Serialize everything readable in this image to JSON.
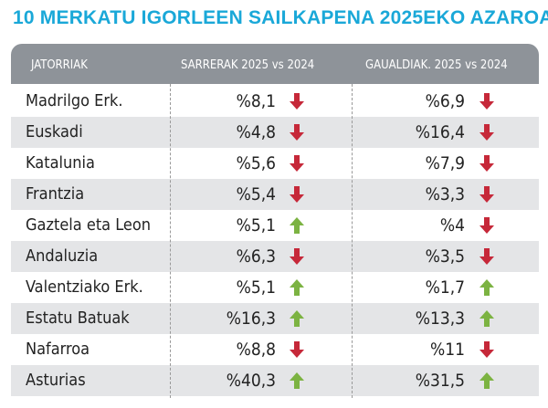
{
  "header": {
    "title": "10 MERKATU IGORLEEN SAILKAPENA 2025EKO AZAROA"
  },
  "table": {
    "columns": [
      "JATORRIAK",
      "SARRERAK 2025 vs 2024",
      "GAUALDIAK. 2025 vs 2024"
    ],
    "rows": [
      [
        "Madrilgo Erk.",
        {
          "text": "%8,1",
          "arrow": "down"
        },
        {
          "text": "%6,9",
          "arrow": "down"
        }
      ],
      [
        "Euskadi",
        {
          "text": "%4,8",
          "arrow": "down"
        },
        {
          "text": "%16,4",
          "arrow": "down"
        }
      ],
      [
        "Katalunia",
        {
          "text": "%5,6",
          "arrow": "down"
        },
        {
          "text": "%7,9",
          "arrow": "down"
        }
      ],
      [
        "Frantzia",
        {
          "text": "%5,4",
          "arrow": "down"
        },
        {
          "text": "%3,3",
          "arrow": "down"
        }
      ],
      [
        "Gaztela eta Leon",
        {
          "text": "%5,1",
          "arrow": "up"
        },
        {
          "text": "%4",
          "arrow": "down"
        }
      ],
      [
        "Andaluzia",
        {
          "text": "%6,3",
          "arrow": "down"
        },
        {
          "text": "%3,5",
          "arrow": "down"
        }
      ],
      [
        "Valentziako Erk.",
        {
          "text": "%5,1",
          "arrow": "up"
        },
        {
          "text": "%1,7",
          "arrow": "up"
        }
      ],
      [
        "Estatu Batuak",
        {
          "text": "%16,3",
          "arrow": "up"
        },
        {
          "text": "%13,3",
          "arrow": "up"
        }
      ],
      [
        "Nafarroa",
        {
          "text": "%8,8",
          "arrow": "down"
        },
        {
          "text": "%11",
          "arrow": "down"
        }
      ],
      [
        "Asturias",
        {
          "text": "%40,3",
          "arrow": "up"
        },
        {
          "text": "%31,5",
          "arrow": "up"
        }
      ]
    ]
  }
}
